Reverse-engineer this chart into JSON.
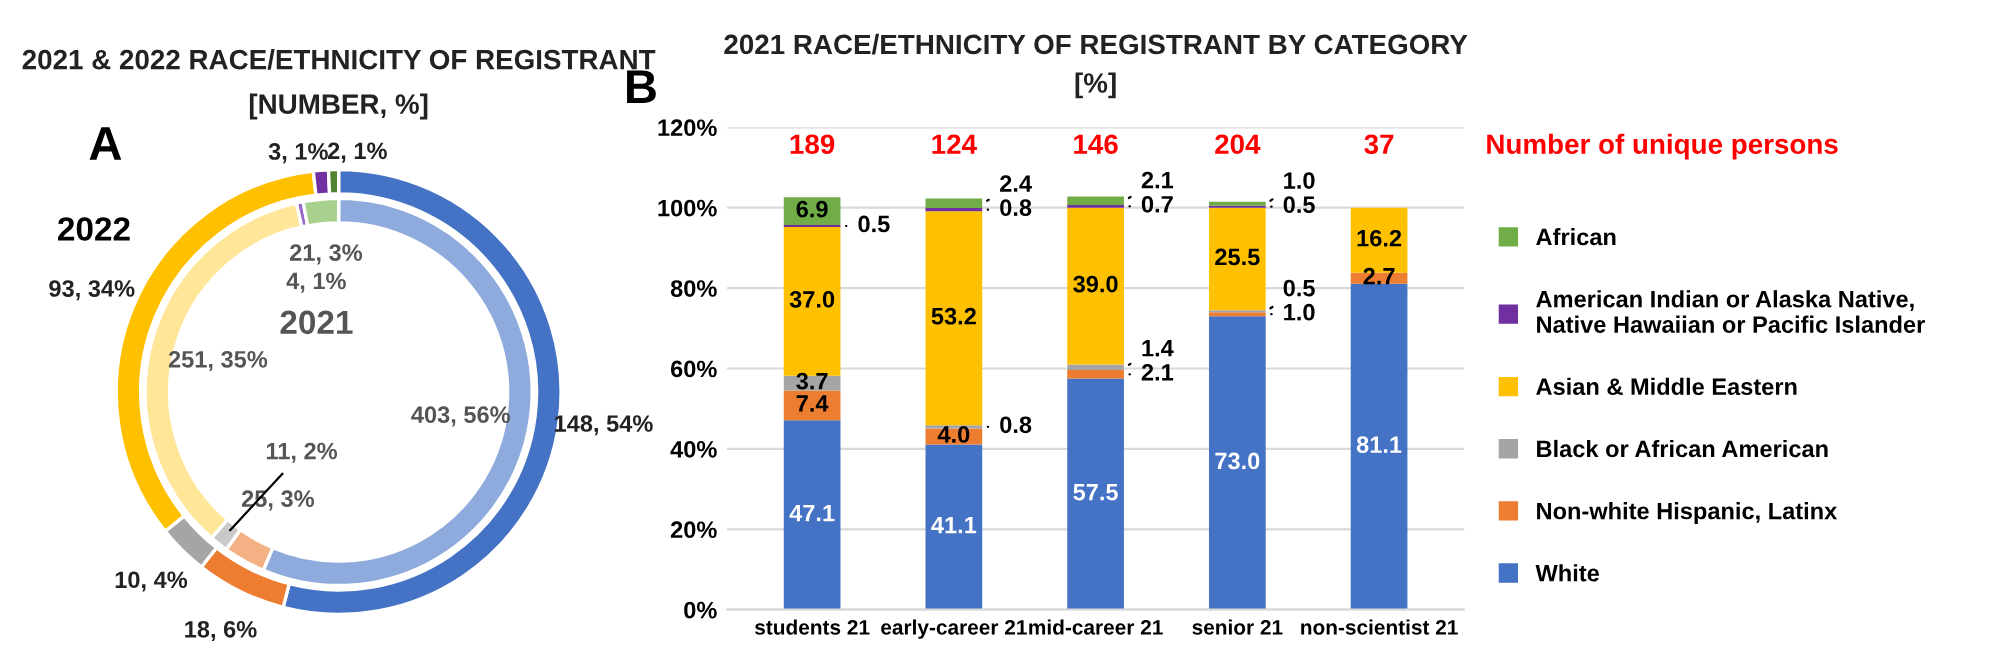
{
  "chart_data": [
    {
      "type": "donut",
      "title": "2021 & 2022 RACE/ETHNICITY OF REGISTRANT",
      "subtitle": "[NUMBER, %]",
      "annotations": [
        "A"
      ],
      "categories": [
        null,
        null,
        null,
        null,
        null,
        null
      ],
      "series": [
        {
          "name": "2022",
          "colors": [
            "#4472c4",
            "#ed7d31",
            "#a5a5a5",
            "#ffc000",
            "#7030a0",
            "#548235"
          ],
          "values": [
            148,
            18,
            10,
            93,
            3,
            2
          ],
          "value_labels": [
            "148, 54%",
            "18, 6%",
            "10, 4%",
            "93, 34%",
            "3, 1%",
            "2, 1%"
          ]
        },
        {
          "name": "2021",
          "colors": [
            "#8faadc",
            "#f4b183",
            "#c9c9c9",
            "#ffe699",
            "#9966cc",
            "#a9d18e"
          ],
          "values": [
            403,
            25,
            11,
            251,
            4,
            21
          ],
          "value_labels": [
            "403, 56%",
            "25, 3%",
            "11, 2%",
            "251, 35%",
            "4, 1%",
            "21, 3%"
          ]
        }
      ]
    },
    {
      "type": "bar",
      "stacked": true,
      "title": "2021 RACE/ETHNICITY OF REGISTRANT BY CATEGORY",
      "subtitle": "[%]",
      "categories": [
        "students 21",
        "early-career 21",
        "mid-career 21",
        "senior 21",
        "non-scientist 21"
      ],
      "ylim": [
        0,
        120
      ],
      "yticks": [
        {
          "value": 0,
          "label": "0%"
        },
        {
          "value": 20,
          "label": "20%"
        },
        {
          "value": 40,
          "label": "40%"
        },
        {
          "value": 60,
          "label": "60%"
        },
        {
          "value": 80,
          "label": "80%"
        },
        {
          "value": 100,
          "label": "100%"
        },
        {
          "value": 120,
          "label": "120%"
        }
      ],
      "grid": "y",
      "legend": "right",
      "annotations": [
        "B",
        "Number of unique persons",
        "189",
        "124",
        "146",
        "204",
        "37"
      ],
      "series": [
        {
          "name": "White",
          "color": "#4472c4",
          "values": [
            47.1,
            41.1,
            57.5,
            73.0,
            81.1
          ],
          "value_labels": [
            "47.1",
            "41.1",
            "57.5",
            "73.0",
            "81.1"
          ]
        },
        {
          "name": "Non-white Hispanic, Latinx",
          "color": "#ed7d31",
          "values": [
            7.4,
            4.0,
            2.1,
            1.0,
            2.7
          ],
          "value_labels": [
            "7.4",
            "4.0",
            "2.1",
            "1.0",
            "2.7"
          ]
        },
        {
          "name": "Black or African American",
          "color": "#a5a5a5",
          "values": [
            3.7,
            0.8,
            1.4,
            0.5,
            0
          ],
          "value_labels": [
            "3.7",
            "0.8",
            "1.4",
            "0.5",
            null
          ]
        },
        {
          "name": "Asian & Middle Eastern",
          "color": "#ffc000",
          "values": [
            37.0,
            53.2,
            39.0,
            25.5,
            16.2
          ],
          "value_labels": [
            "37.0",
            "53.2",
            "39.0",
            "25.5",
            "16.2"
          ]
        },
        {
          "name": "American Indian or Alaska Native,\nNative Hawaiian or Pacific Islander",
          "color": "#7030a0",
          "values": [
            0.5,
            0.8,
            0.7,
            0.5,
            0
          ],
          "value_labels": [
            "0.5",
            "0.8",
            "0.7",
            "0.5",
            null
          ]
        },
        {
          "name": "African",
          "color": "#70ad47",
          "values": [
            6.9,
            2.4,
            2.1,
            1.0,
            0
          ],
          "value_labels": [
            "6.9",
            "2.4",
            "2.1",
            "1.0",
            null
          ]
        }
      ]
    }
  ]
}
